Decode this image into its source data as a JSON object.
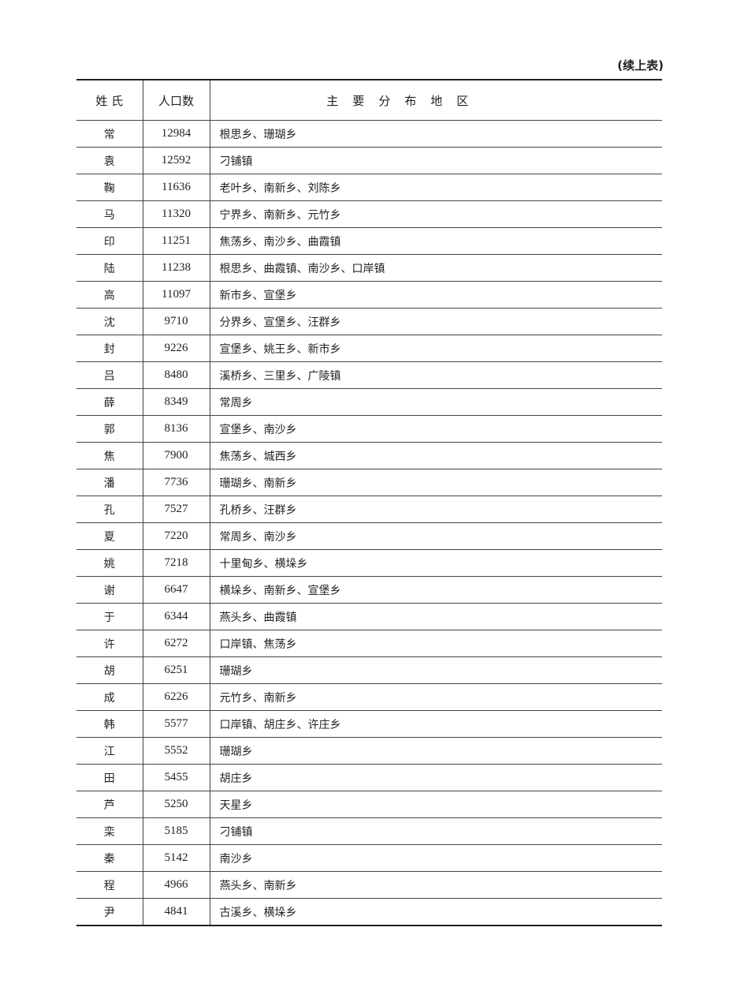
{
  "continued_label": "(续上表)",
  "table": {
    "headers": [
      "姓 氏",
      "人口数",
      "主要分布地区"
    ],
    "rows": [
      [
        "常",
        "12984",
        "根思乡、珊瑚乡"
      ],
      [
        "袁",
        "12592",
        "刁铺镇"
      ],
      [
        "鞠",
        "11636",
        "老叶乡、南新乡、刘陈乡"
      ],
      [
        "马",
        "11320",
        "宁界乡、南新乡、元竹乡"
      ],
      [
        "印",
        "11251",
        "焦荡乡、南沙乡、曲霞镇"
      ],
      [
        "陆",
        "11238",
        "根思乡、曲霞镇、南沙乡、口岸镇"
      ],
      [
        "高",
        "11097",
        "新市乡、宣堡乡"
      ],
      [
        "沈",
        "9710",
        "分界乡、宣堡乡、汪群乡"
      ],
      [
        "封",
        "9226",
        "宣堡乡、姚王乡、新市乡"
      ],
      [
        "吕",
        "8480",
        "溪桥乡、三里乡、广陵镇"
      ],
      [
        "薛",
        "8349",
        "常周乡"
      ],
      [
        "郭",
        "8136",
        "宣堡乡、南沙乡"
      ],
      [
        "焦",
        "7900",
        "焦荡乡、城西乡"
      ],
      [
        "潘",
        "7736",
        "珊瑚乡、南新乡"
      ],
      [
        "孔",
        "7527",
        "孔桥乡、汪群乡"
      ],
      [
        "夏",
        "7220",
        "常周乡、南沙乡"
      ],
      [
        "姚",
        "7218",
        "十里甸乡、横垛乡"
      ],
      [
        "谢",
        "6647",
        "横垛乡、南新乡、宣堡乡"
      ],
      [
        "于",
        "6344",
        "燕头乡、曲霞镇"
      ],
      [
        "许",
        "6272",
        "口岸镇、焦荡乡"
      ],
      [
        "胡",
        "6251",
        "珊瑚乡"
      ],
      [
        "成",
        "6226",
        "元竹乡、南新乡"
      ],
      [
        "韩",
        "5577",
        "口岸镇、胡庄乡、许庄乡"
      ],
      [
        "江",
        "5552",
        "珊瑚乡"
      ],
      [
        "田",
        "5455",
        "胡庄乡"
      ],
      [
        "芦",
        "5250",
        "天星乡"
      ],
      [
        "栾",
        "5185",
        "刁铺镇"
      ],
      [
        "秦",
        "5142",
        "南沙乡"
      ],
      [
        "程",
        "4966",
        "燕头乡、南新乡"
      ],
      [
        "尹",
        "4841",
        "古溪乡、横垛乡"
      ]
    ]
  }
}
